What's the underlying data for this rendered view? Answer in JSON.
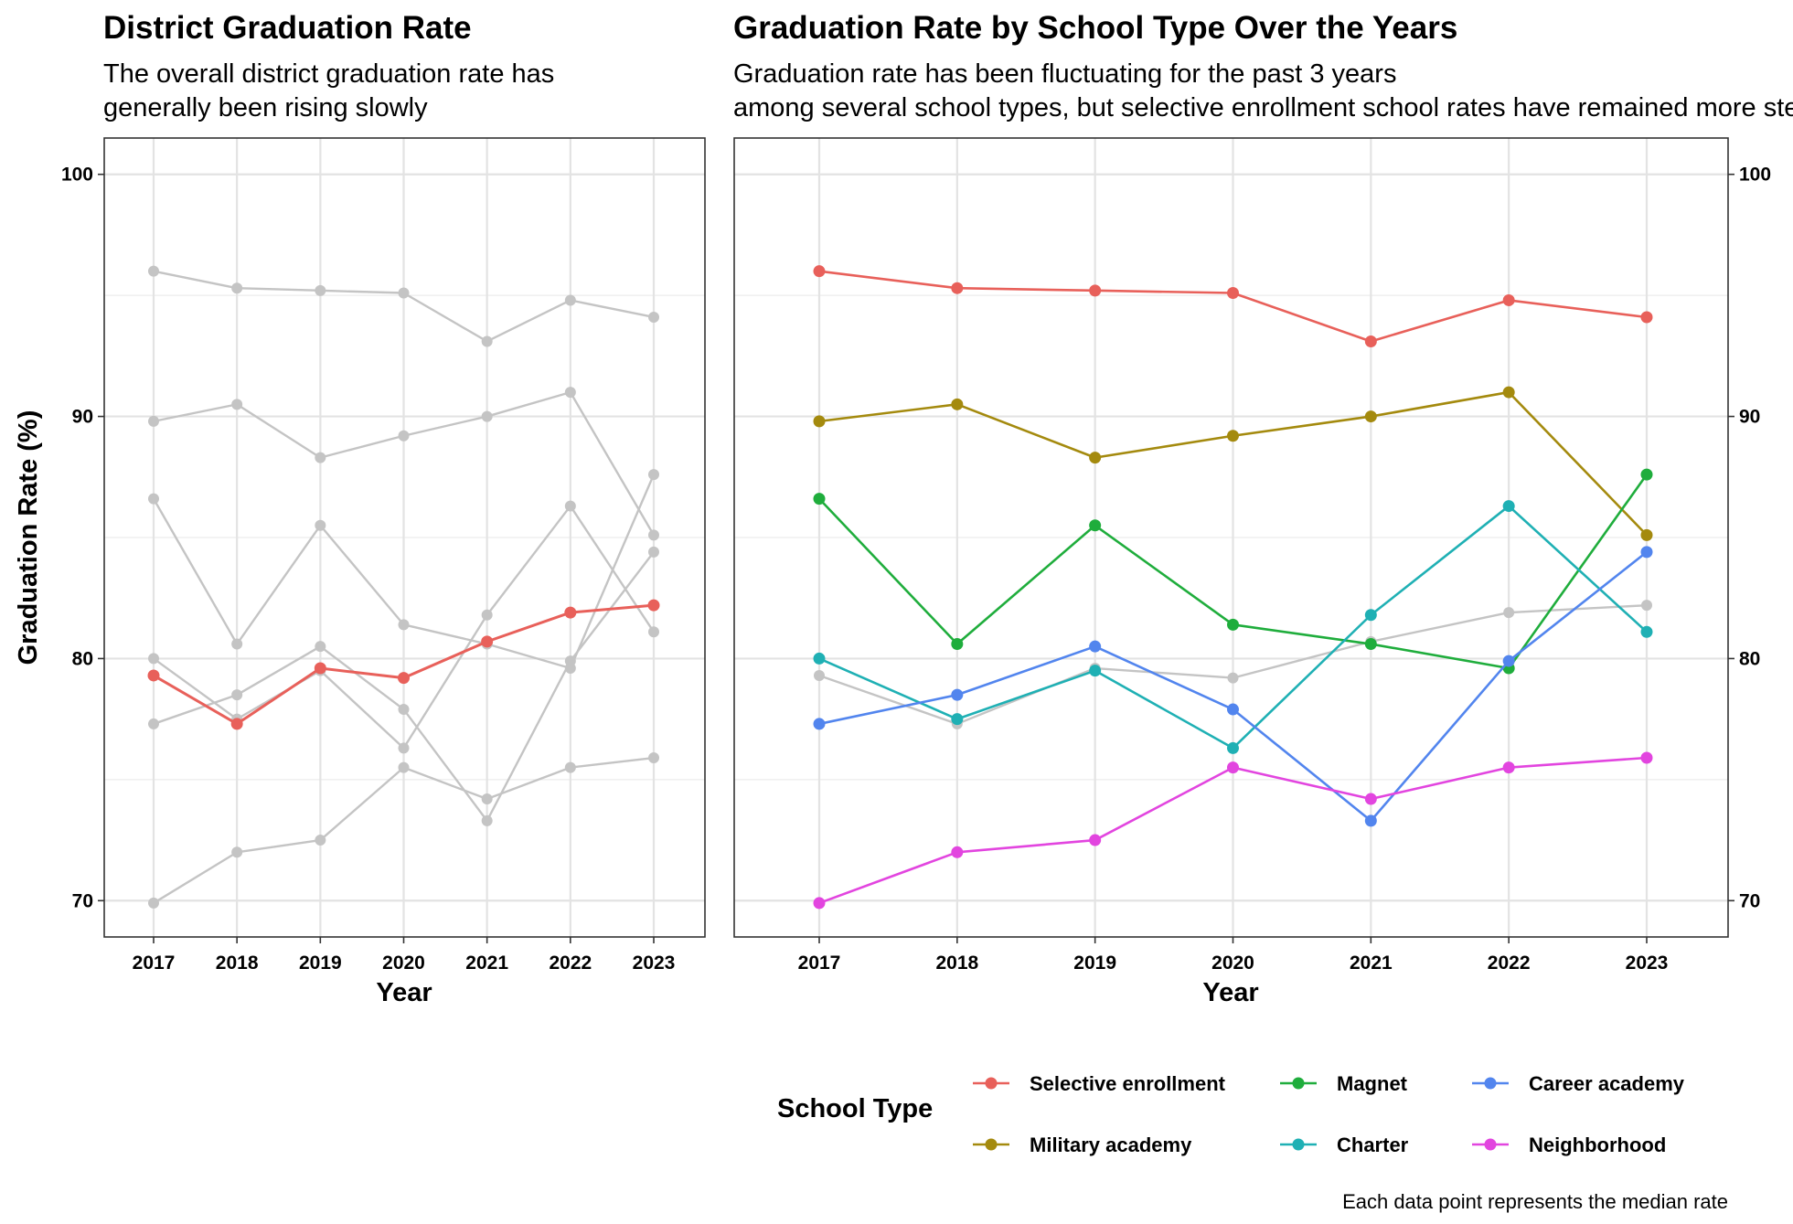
{
  "chart_data": [
    {
      "type": "line",
      "title": "District Graduation Rate",
      "subtitle": "The overall district graduation rate has generally been rising slowly",
      "xlabel": "Year",
      "ylabel": "Graduation Rate (%)",
      "x": [
        2017,
        2018,
        2019,
        2020,
        2021,
        2022,
        2023
      ],
      "ylim": [
        68.5,
        101.5
      ],
      "yticks": [
        70,
        80,
        90,
        100
      ],
      "grid": true,
      "highlight": {
        "name": "",
        "color": "#e8605a",
        "values": [
          79.3,
          77.3,
          79.6,
          79.2,
          80.7,
          81.9,
          82.2
        ]
      },
      "background_series": [
        {
          "values": [
            96.0,
            95.3,
            95.2,
            95.1,
            93.1,
            94.8,
            94.1
          ]
        },
        {
          "values": [
            89.8,
            90.5,
            88.3,
            89.2,
            90.0,
            91.0,
            85.1
          ]
        },
        {
          "values": [
            86.6,
            80.6,
            85.5,
            81.4,
            80.6,
            79.6,
            87.6
          ]
        },
        {
          "values": [
            80.0,
            77.5,
            79.5,
            76.3,
            81.8,
            86.3,
            81.1
          ]
        },
        {
          "values": [
            77.3,
            78.5,
            80.5,
            77.9,
            73.3,
            79.9,
            84.4
          ]
        },
        {
          "values": [
            69.9,
            72.0,
            72.5,
            75.5,
            74.2,
            75.5,
            75.9
          ]
        }
      ]
    },
    {
      "type": "line",
      "title": "Graduation Rate by School Type Over the Years",
      "subtitle": "Graduation rate has been fluctuating for the past 3 years among several school types, but selective enrollment school rates have remained more steady",
      "xlabel": "Year",
      "ylabel": "",
      "x": [
        2017,
        2018,
        2019,
        2020,
        2021,
        2022,
        2023
      ],
      "ylim": [
        68.5,
        101.5
      ],
      "yticks": [
        70,
        80,
        90,
        100
      ],
      "grid": true,
      "legend_position": "bottom",
      "legend_title": "School Type",
      "caption": "Each data point represents the median rate",
      "overall": {
        "color": "#c4c4c4",
        "values": [
          79.3,
          77.3,
          79.6,
          79.2,
          80.7,
          81.9,
          82.2
        ]
      },
      "series": [
        {
          "name": "Selective enrollment",
          "color": "#e8605a",
          "values": [
            96.0,
            95.3,
            95.2,
            95.1,
            93.1,
            94.8,
            94.1
          ]
        },
        {
          "name": "Military academy",
          "color": "#a48a0e",
          "values": [
            89.8,
            90.5,
            88.3,
            89.2,
            90.0,
            91.0,
            85.1
          ]
        },
        {
          "name": "Magnet",
          "color": "#1fad3c",
          "values": [
            86.6,
            80.6,
            85.5,
            81.4,
            80.6,
            79.6,
            87.6
          ]
        },
        {
          "name": "Charter",
          "color": "#1fb0b4",
          "values": [
            80.0,
            77.5,
            79.5,
            76.3,
            81.8,
            86.3,
            81.1
          ]
        },
        {
          "name": "Career academy",
          "color": "#5285ee",
          "values": [
            77.3,
            78.5,
            80.5,
            77.9,
            73.3,
            79.9,
            84.4
          ]
        },
        {
          "name": "Neighborhood",
          "color": "#e245df",
          "values": [
            69.9,
            72.0,
            72.5,
            75.5,
            74.2,
            75.5,
            75.9
          ]
        }
      ]
    }
  ]
}
